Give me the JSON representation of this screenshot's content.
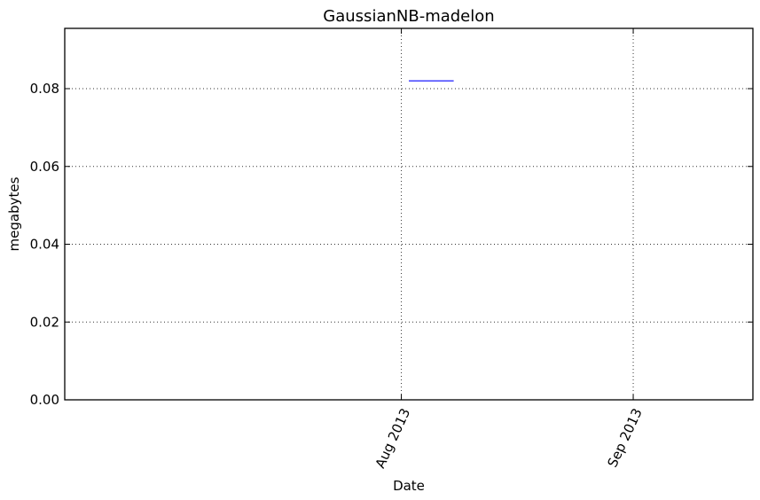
{
  "chart_data": {
    "type": "line",
    "title": "GaussianNB-madelon",
    "xlabel": "Date",
    "ylabel": "megabytes",
    "x_scale": "date",
    "xlim": [
      "2013-06-17",
      "2013-09-17"
    ],
    "ylim": [
      0,
      0.0955
    ],
    "yticks": [
      {
        "value": 0.0,
        "label": "0.00"
      },
      {
        "value": 0.02,
        "label": "0.02"
      },
      {
        "value": 0.04,
        "label": "0.04"
      },
      {
        "value": 0.06,
        "label": "0.06"
      },
      {
        "value": 0.08,
        "label": "0.08"
      }
    ],
    "xticks": [
      {
        "value": "2013-08-01",
        "label": "Aug 2013"
      },
      {
        "value": "2013-09-01",
        "label": "Sep 2013"
      }
    ],
    "grid": true,
    "series": [
      {
        "color": "#0000ff",
        "points": [
          {
            "x": "2013-08-02",
            "y": 0.082
          },
          {
            "x": "2013-08-08",
            "y": 0.082
          }
        ]
      }
    ]
  }
}
